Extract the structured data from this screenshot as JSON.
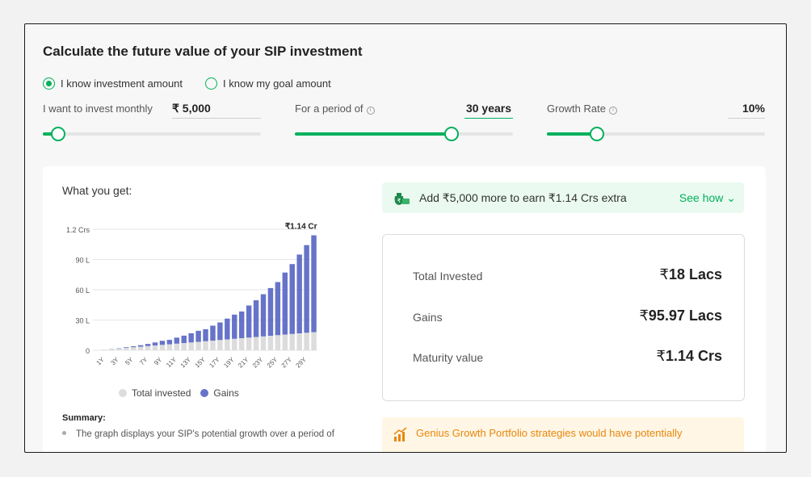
{
  "page": {
    "title": "Calculate the future value of your SIP investment"
  },
  "mode": {
    "option1": "I know investment amount",
    "option2": "I know my goal amount",
    "selected": "option1"
  },
  "inputs": {
    "monthly": {
      "label": "I want to invest monthly",
      "value": "₹ 5,000",
      "slider_fraction": 0.07
    },
    "period": {
      "label": "For a period of",
      "value": "30 years",
      "slider_fraction": 0.72
    },
    "growth": {
      "label": "Growth Rate",
      "value": "10%",
      "slider_fraction": 0.23
    }
  },
  "results": {
    "heading": "What you get:",
    "banner": {
      "text": "Add ₹5,000 more to earn ₹1.14 Crs extra",
      "link": "See how",
      "icon": "money-bag-icon"
    },
    "stats": [
      {
        "label": "Total Invested",
        "currency": "₹",
        "value": "18 Lacs"
      },
      {
        "label": "Gains",
        "currency": "₹",
        "value": "95.97 Lacs"
      },
      {
        "label": "Maturity value",
        "currency": "₹",
        "value": "1.14 Crs"
      }
    ],
    "promo": {
      "text": "Genius Growth Portfolio strategies would have potentially",
      "icon": "growth-bars-icon"
    },
    "summary_heading": "Summary:",
    "summary_text": "The graph displays your SIP's potential growth over a period of"
  },
  "colors": {
    "accent": "#00b05b",
    "invested": "#dcdcdc",
    "gains": "#6673c8"
  },
  "chart_data": {
    "type": "bar",
    "stacked": true,
    "peak_label": "₹1.14 Cr",
    "y_ticks": [
      {
        "value": 0,
        "label": "0"
      },
      {
        "value": 30,
        "label": "30 L"
      },
      {
        "value": 60,
        "label": "60 L"
      },
      {
        "value": 90,
        "label": "90 L"
      },
      {
        "value": 120,
        "label": "1.2 Crs"
      }
    ],
    "ylim": [
      0,
      120
    ],
    "categories": [
      "1Y",
      "2Y",
      "3Y",
      "4Y",
      "5Y",
      "6Y",
      "7Y",
      "8Y",
      "9Y",
      "10Y",
      "11Y",
      "12Y",
      "13Y",
      "14Y",
      "15Y",
      "16Y",
      "17Y",
      "18Y",
      "19Y",
      "20Y",
      "21Y",
      "22Y",
      "23Y",
      "24Y",
      "25Y",
      "26Y",
      "27Y",
      "28Y",
      "29Y",
      "30Y"
    ],
    "x_tick_labels": [
      "1Y",
      "3Y",
      "5Y",
      "7Y",
      "9Y",
      "11Y",
      "13Y",
      "15Y",
      "17Y",
      "19Y",
      "21Y",
      "23Y",
      "25Y",
      "27Y",
      "29Y"
    ],
    "legend": [
      "Total invested",
      "Gains"
    ],
    "series": [
      {
        "name": "Total invested",
        "values": [
          0.6,
          1.2,
          1.8,
          2.4,
          3.0,
          3.6,
          4.2,
          4.8,
          5.4,
          6.0,
          6.6,
          7.2,
          7.8,
          8.4,
          9.0,
          9.6,
          10.2,
          10.8,
          11.4,
          12.0,
          12.6,
          13.2,
          13.8,
          14.4,
          15.0,
          15.6,
          16.2,
          16.8,
          17.4,
          18.0
        ]
      },
      {
        "name": "Gains",
        "values": [
          0.03,
          0.13,
          0.31,
          0.62,
          0.94,
          1.47,
          2.1,
          2.95,
          4.0,
          4.33,
          5.94,
          7.31,
          9.04,
          10.91,
          11.9,
          14.82,
          17.4,
          20.6,
          23.95,
          26.46,
          31.81,
          36.36,
          41.77,
          47.27,
          52.62,
          61.45,
          69.24,
          78.1,
          86.84,
          95.97
        ]
      }
    ]
  }
}
